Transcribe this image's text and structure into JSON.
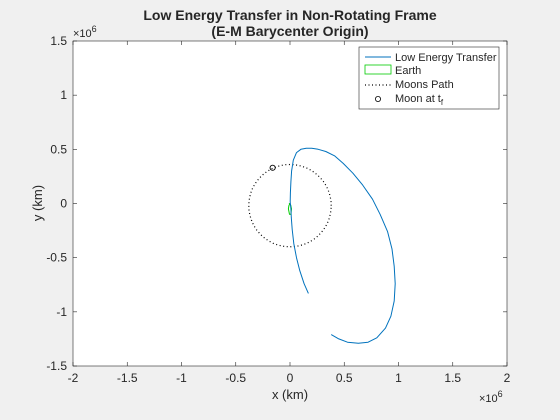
{
  "chart_data": {
    "type": "line",
    "title": [
      "Low Energy Transfer in Non-Rotating Frame",
      "(E-M Barycenter Origin)"
    ],
    "xlabel": "x (km)",
    "ylabel": "y (km)",
    "axis_multiplier": {
      "base": "×10",
      "exponent": "6"
    },
    "xlim": [
      -2,
      2
    ],
    "ylim": [
      -1.5,
      1.5
    ],
    "value_scale": 1000000,
    "xticks": [
      -2,
      -1.5,
      -1,
      -0.5,
      0,
      0.5,
      1,
      1.5,
      2
    ],
    "xtick_labels": [
      "-2",
      "-1.5",
      "-1",
      "-0.5",
      "0",
      "0.5",
      "1",
      "1.5",
      "2"
    ],
    "yticks": [
      -1.5,
      -1,
      -0.5,
      0,
      0.5,
      1,
      1.5
    ],
    "ytick_labels": [
      "-1.5",
      "-1",
      "-0.5",
      "0",
      "0.5",
      "1",
      "1.5"
    ],
    "grid": false,
    "legend_position": "top-right",
    "legend": {
      "transfer": "Low Energy Transfer",
      "earth": "Earth",
      "moon_path": "Moons Path",
      "moon_at": "Moon at t",
      "moon_at_sub": "f"
    },
    "colors": {
      "transfer": "#0072bd",
      "earth": "#00cc00",
      "moon_path": "#000000",
      "moon": "#000000",
      "axes_bg": "#ffffff",
      "figure_bg": "#f0f0f0"
    },
    "series": {
      "transfer": {
        "x": [
          0.17,
          0.13,
          0.09,
          0.06,
          0.035,
          0.02,
          0.012,
          0.008,
          0.005,
          0.003,
          0.002,
          0.004,
          0.008,
          0.015,
          0.03,
          0.06,
          0.1,
          0.15,
          0.2,
          0.26,
          0.33,
          0.41,
          0.49,
          0.58,
          0.67,
          0.76,
          0.83,
          0.9,
          0.94,
          0.96,
          0.97,
          0.96,
          0.93,
          0.88,
          0.8,
          0.72,
          0.63,
          0.53,
          0.45,
          0.38
        ],
        "y": [
          -0.83,
          -0.74,
          -0.62,
          -0.5,
          -0.37,
          -0.24,
          -0.13,
          -0.05,
          -0.01,
          0.0,
          0.02,
          0.1,
          0.2,
          0.3,
          0.4,
          0.47,
          0.5,
          0.51,
          0.51,
          0.5,
          0.48,
          0.44,
          0.37,
          0.28,
          0.17,
          0.04,
          -0.1,
          -0.26,
          -0.42,
          -0.58,
          -0.74,
          -0.9,
          -1.04,
          -1.15,
          -1.24,
          -1.28,
          -1.29,
          -1.28,
          -1.25,
          -1.21
        ]
      },
      "earth": {
        "x": [
          0.0,
          -0.01,
          -0.015,
          -0.005,
          0.008,
          0.014,
          0.006,
          -0.004,
          0.0
        ],
        "y": [
          0.0,
          -0.02,
          -0.05,
          -0.1,
          -0.1,
          -0.05,
          -0.015,
          0.0,
          0.0
        ]
      },
      "moon_path": {
        "center": [
          0.0,
          -0.02
        ],
        "radius": 0.38,
        "samples": 60
      },
      "moon_at_tf": {
        "x": -0.16,
        "y": 0.33
      }
    }
  }
}
